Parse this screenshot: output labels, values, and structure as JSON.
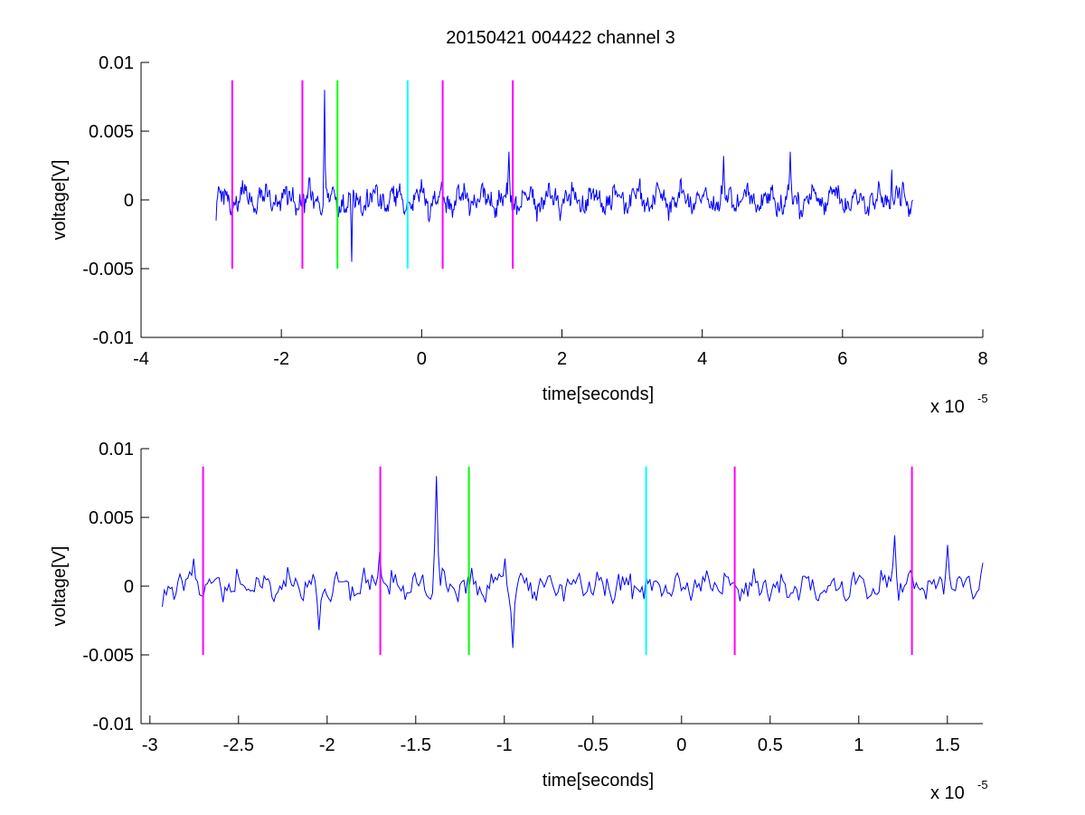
{
  "figure": {
    "title": "20150421 004422 channel 3"
  },
  "chart_data": [
    {
      "type": "line",
      "title": "20150421 004422 channel 3",
      "xlabel": "time[seconds]",
      "ylabel": "voltage[V]",
      "x_exponent_label": "x 10",
      "x_exponent_power": "-5",
      "xlim": [
        -4,
        8
      ],
      "ylim": [
        -0.01,
        0.01
      ],
      "x_ticks": [
        -4,
        -2,
        0,
        2,
        4,
        6,
        8
      ],
      "x_tick_labels": [
        "-4",
        "-2",
        "0",
        "2",
        "4",
        "6",
        "8"
      ],
      "y_ticks": [
        -0.01,
        -0.005,
        0,
        0.005,
        0.01
      ],
      "y_tick_labels": [
        "-0.01",
        "-0.005",
        "0",
        "0.005",
        "0.01"
      ],
      "grid": false,
      "signal": {
        "color": "#0000ff",
        "x_start": -2.93,
        "x_end": 7.0,
        "approx_samples": 900,
        "amplitude": 0.0013,
        "x": [
          -2.93,
          -2.5,
          -1.38,
          -1.0,
          0.0,
          1.25,
          4.3,
          5.25,
          6.7,
          7.0
        ],
        "y": [
          -0.0015,
          0.001,
          0.008,
          -0.0045,
          0.0015,
          0.0035,
          0.0032,
          0.0035,
          0.0022,
          0.0
        ]
      },
      "markers": [
        {
          "x": -2.7,
          "color": "#ff00ff",
          "y_range": [
            -0.005,
            0.0087
          ]
        },
        {
          "x": -1.7,
          "color": "#ff00ff",
          "y_range": [
            -0.005,
            0.0087
          ]
        },
        {
          "x": -1.2,
          "color": "#00ff00",
          "y_range": [
            -0.005,
            0.0087
          ]
        },
        {
          "x": -0.2,
          "color": "#00ffff",
          "y_range": [
            -0.005,
            0.0087
          ]
        },
        {
          "x": 0.3,
          "color": "#ff00ff",
          "y_range": [
            -0.005,
            0.0087
          ]
        },
        {
          "x": 1.3,
          "color": "#ff00ff",
          "y_range": [
            -0.005,
            0.0087
          ]
        }
      ]
    },
    {
      "type": "line",
      "title": "",
      "xlabel": "time[seconds]",
      "ylabel": "voltage[V]",
      "x_exponent_label": "x 10",
      "x_exponent_power": "-5",
      "xlim": [
        -3.05,
        1.7
      ],
      "ylim": [
        -0.01,
        0.01
      ],
      "x_ticks": [
        -3,
        -2.5,
        -2,
        -1.5,
        -1,
        -0.5,
        0,
        0.5,
        1,
        1.5
      ],
      "x_tick_labels": [
        "-3",
        "-2.5",
        "-2",
        "-1.5",
        "-1",
        "-0.5",
        "0",
        "0.5",
        "1",
        "1.5"
      ],
      "y_ticks": [
        -0.01,
        -0.005,
        0,
        0.005,
        0.01
      ],
      "y_tick_labels": [
        "-0.01",
        "-0.005",
        "0",
        "0.005",
        "0.01"
      ],
      "grid": false,
      "signal": {
        "color": "#0000ff",
        "x_start": -2.93,
        "x_end": 1.7,
        "approx_samples": 420,
        "amplitude": 0.0012,
        "x": [
          -2.93,
          -2.75,
          -2.05,
          -1.7,
          -1.38,
          -1.0,
          -0.95,
          1.2,
          1.5,
          1.7
        ],
        "y": [
          -0.0015,
          0.002,
          -0.0032,
          0.0025,
          0.008,
          0.002,
          -0.0045,
          0.0037,
          0.003,
          0.0017
        ]
      },
      "markers": [
        {
          "x": -2.7,
          "color": "#ff00ff",
          "y_range": [
            -0.005,
            0.0087
          ]
        },
        {
          "x": -1.7,
          "color": "#ff00ff",
          "y_range": [
            -0.005,
            0.0087
          ]
        },
        {
          "x": -1.2,
          "color": "#00ff00",
          "y_range": [
            -0.005,
            0.0087
          ]
        },
        {
          "x": -0.2,
          "color": "#00ffff",
          "y_range": [
            -0.005,
            0.0087
          ]
        },
        {
          "x": 0.3,
          "color": "#ff00ff",
          "y_range": [
            -0.005,
            0.0087
          ]
        },
        {
          "x": 1.3,
          "color": "#ff00ff",
          "y_range": [
            -0.005,
            0.0087
          ]
        }
      ]
    }
  ]
}
